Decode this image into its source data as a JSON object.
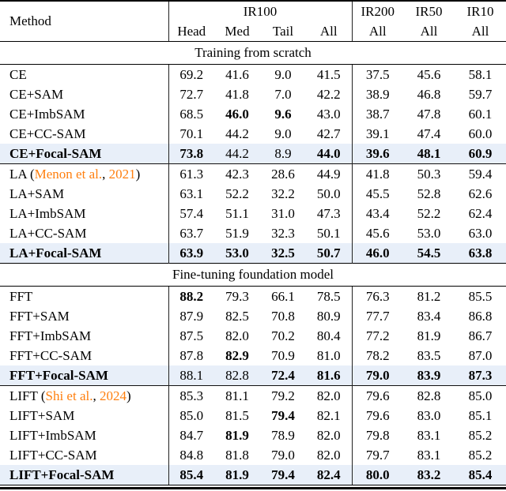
{
  "colors": {
    "accent_orange": "#ff7f0e",
    "highlight_row": "#e8eff9"
  },
  "table": {
    "header": {
      "method": "Method",
      "ir100": "IR100",
      "ir200": "IR200",
      "ir50": "IR50",
      "ir10": "IR10",
      "ir100_sub": [
        "Head",
        "Med",
        "Tail",
        "All"
      ],
      "all_label": "All"
    },
    "sections": [
      {
        "title": "Training from scratch",
        "groups": [
          {
            "rows": [
              {
                "method_parts": [
                  {
                    "t": "CE",
                    "c": 0
                  }
                ],
                "bold_method": false,
                "highlight": false,
                "values": [
                  "69.2",
                  "41.6",
                  "9.0",
                  "41.5",
                  "37.5",
                  "45.6",
                  "58.1"
                ],
                "bold": [
                  0,
                  0,
                  0,
                  0,
                  0,
                  0,
                  0
                ]
              },
              {
                "method_parts": [
                  {
                    "t": "CE+SAM",
                    "c": 0
                  }
                ],
                "bold_method": false,
                "highlight": false,
                "values": [
                  "72.7",
                  "41.8",
                  "7.0",
                  "42.2",
                  "38.9",
                  "46.8",
                  "59.7"
                ],
                "bold": [
                  0,
                  0,
                  0,
                  0,
                  0,
                  0,
                  0
                ]
              },
              {
                "method_parts": [
                  {
                    "t": "CE+ImbSAM",
                    "c": 0
                  }
                ],
                "bold_method": false,
                "highlight": false,
                "values": [
                  "68.5",
                  "46.0",
                  "9.6",
                  "43.0",
                  "38.7",
                  "47.8",
                  "60.1"
                ],
                "bold": [
                  0,
                  1,
                  1,
                  0,
                  0,
                  0,
                  0
                ]
              },
              {
                "method_parts": [
                  {
                    "t": "CE+CC-SAM",
                    "c": 0
                  }
                ],
                "bold_method": false,
                "highlight": false,
                "values": [
                  "70.1",
                  "44.2",
                  "9.0",
                  "42.7",
                  "39.1",
                  "47.4",
                  "60.0"
                ],
                "bold": [
                  0,
                  0,
                  0,
                  0,
                  0,
                  0,
                  0
                ]
              },
              {
                "method_parts": [
                  {
                    "t": "CE+Focal-SAM",
                    "c": 0
                  }
                ],
                "bold_method": true,
                "highlight": true,
                "values": [
                  "73.8",
                  "44.2",
                  "8.9",
                  "44.0",
                  "39.6",
                  "48.1",
                  "60.9"
                ],
                "bold": [
                  1,
                  0,
                  0,
                  1,
                  1,
                  1,
                  1
                ]
              }
            ]
          },
          {
            "rows": [
              {
                "method_parts": [
                  {
                    "t": "LA (",
                    "c": 0
                  },
                  {
                    "t": "Menon et al.",
                    "c": 1
                  },
                  {
                    "t": ", ",
                    "c": 0
                  },
                  {
                    "t": "2021",
                    "c": 1
                  },
                  {
                    "t": ")",
                    "c": 0
                  }
                ],
                "bold_method": false,
                "highlight": false,
                "values": [
                  "61.3",
                  "42.3",
                  "28.6",
                  "44.9",
                  "41.8",
                  "50.3",
                  "59.4"
                ],
                "bold": [
                  0,
                  0,
                  0,
                  0,
                  0,
                  0,
                  0
                ]
              },
              {
                "method_parts": [
                  {
                    "t": "LA+SAM",
                    "c": 0
                  }
                ],
                "bold_method": false,
                "highlight": false,
                "values": [
                  "63.1",
                  "52.2",
                  "32.2",
                  "50.0",
                  "45.5",
                  "52.8",
                  "62.6"
                ],
                "bold": [
                  0,
                  0,
                  0,
                  0,
                  0,
                  0,
                  0
                ]
              },
              {
                "method_parts": [
                  {
                    "t": "LA+ImbSAM",
                    "c": 0
                  }
                ],
                "bold_method": false,
                "highlight": false,
                "values": [
                  "57.4",
                  "51.1",
                  "31.0",
                  "47.3",
                  "43.4",
                  "52.2",
                  "62.4"
                ],
                "bold": [
                  0,
                  0,
                  0,
                  0,
                  0,
                  0,
                  0
                ]
              },
              {
                "method_parts": [
                  {
                    "t": "LA+CC-SAM",
                    "c": 0
                  }
                ],
                "bold_method": false,
                "highlight": false,
                "values": [
                  "63.7",
                  "51.9",
                  "32.3",
                  "50.1",
                  "45.6",
                  "53.0",
                  "63.0"
                ],
                "bold": [
                  0,
                  0,
                  0,
                  0,
                  0,
                  0,
                  0
                ]
              },
              {
                "method_parts": [
                  {
                    "t": "LA+Focal-SAM",
                    "c": 0
                  }
                ],
                "bold_method": true,
                "highlight": true,
                "values": [
                  "63.9",
                  "53.0",
                  "32.5",
                  "50.7",
                  "46.0",
                  "54.5",
                  "63.8"
                ],
                "bold": [
                  1,
                  1,
                  1,
                  1,
                  1,
                  1,
                  1
                ]
              }
            ]
          }
        ]
      },
      {
        "title": "Fine-tuning foundation model",
        "groups": [
          {
            "rows": [
              {
                "method_parts": [
                  {
                    "t": "FFT",
                    "c": 0
                  }
                ],
                "bold_method": false,
                "highlight": false,
                "values": [
                  "88.2",
                  "79.3",
                  "66.1",
                  "78.5",
                  "76.3",
                  "81.2",
                  "85.5"
                ],
                "bold": [
                  1,
                  0,
                  0,
                  0,
                  0,
                  0,
                  0
                ]
              },
              {
                "method_parts": [
                  {
                    "t": "FFT+SAM",
                    "c": 0
                  }
                ],
                "bold_method": false,
                "highlight": false,
                "values": [
                  "87.9",
                  "82.5",
                  "70.8",
                  "80.9",
                  "77.7",
                  "83.4",
                  "86.8"
                ],
                "bold": [
                  0,
                  0,
                  0,
                  0,
                  0,
                  0,
                  0
                ]
              },
              {
                "method_parts": [
                  {
                    "t": "FFT+ImbSAM",
                    "c": 0
                  }
                ],
                "bold_method": false,
                "highlight": false,
                "values": [
                  "87.5",
                  "82.0",
                  "70.2",
                  "80.4",
                  "77.2",
                  "81.9",
                  "86.7"
                ],
                "bold": [
                  0,
                  0,
                  0,
                  0,
                  0,
                  0,
                  0
                ]
              },
              {
                "method_parts": [
                  {
                    "t": "FFT+CC-SAM",
                    "c": 0
                  }
                ],
                "bold_method": false,
                "highlight": false,
                "values": [
                  "87.8",
                  "82.9",
                  "70.9",
                  "81.0",
                  "78.2",
                  "83.5",
                  "87.0"
                ],
                "bold": [
                  0,
                  1,
                  0,
                  0,
                  0,
                  0,
                  0
                ]
              },
              {
                "method_parts": [
                  {
                    "t": "FFT+Focal-SAM",
                    "c": 0
                  }
                ],
                "bold_method": true,
                "highlight": true,
                "values": [
                  "88.1",
                  "82.8",
                  "72.4",
                  "81.6",
                  "79.0",
                  "83.9",
                  "87.3"
                ],
                "bold": [
                  0,
                  0,
                  1,
                  1,
                  1,
                  1,
                  1
                ]
              }
            ]
          },
          {
            "rows": [
              {
                "method_parts": [
                  {
                    "t": "LIFT (",
                    "c": 0
                  },
                  {
                    "t": "Shi et al.",
                    "c": 1
                  },
                  {
                    "t": ", ",
                    "c": 0
                  },
                  {
                    "t": "2024",
                    "c": 1
                  },
                  {
                    "t": ")",
                    "c": 0
                  }
                ],
                "bold_method": false,
                "highlight": false,
                "values": [
                  "85.3",
                  "81.1",
                  "79.2",
                  "82.0",
                  "79.6",
                  "82.8",
                  "85.0"
                ],
                "bold": [
                  0,
                  0,
                  0,
                  0,
                  0,
                  0,
                  0
                ]
              },
              {
                "method_parts": [
                  {
                    "t": "LIFT+SAM",
                    "c": 0
                  }
                ],
                "bold_method": false,
                "highlight": false,
                "values": [
                  "85.0",
                  "81.5",
                  "79.4",
                  "82.1",
                  "79.6",
                  "83.0",
                  "85.1"
                ],
                "bold": [
                  0,
                  0,
                  1,
                  0,
                  0,
                  0,
                  0
                ]
              },
              {
                "method_parts": [
                  {
                    "t": "LIFT+ImbSAM",
                    "c": 0
                  }
                ],
                "bold_method": false,
                "highlight": false,
                "values": [
                  "84.7",
                  "81.9",
                  "78.9",
                  "82.0",
                  "79.8",
                  "83.1",
                  "85.2"
                ],
                "bold": [
                  0,
                  1,
                  0,
                  0,
                  0,
                  0,
                  0
                ]
              },
              {
                "method_parts": [
                  {
                    "t": "LIFT+CC-SAM",
                    "c": 0
                  }
                ],
                "bold_method": false,
                "highlight": false,
                "values": [
                  "84.8",
                  "81.8",
                  "79.0",
                  "82.0",
                  "79.7",
                  "83.1",
                  "85.2"
                ],
                "bold": [
                  0,
                  0,
                  0,
                  0,
                  0,
                  0,
                  0
                ]
              },
              {
                "method_parts": [
                  {
                    "t": "LIFT+Focal-SAM",
                    "c": 0
                  }
                ],
                "bold_method": true,
                "highlight": true,
                "values": [
                  "85.4",
                  "81.9",
                  "79.4",
                  "82.4",
                  "80.0",
                  "83.2",
                  "85.4"
                ],
                "bold": [
                  1,
                  1,
                  1,
                  1,
                  1,
                  1,
                  1
                ]
              }
            ]
          }
        ]
      }
    ]
  }
}
